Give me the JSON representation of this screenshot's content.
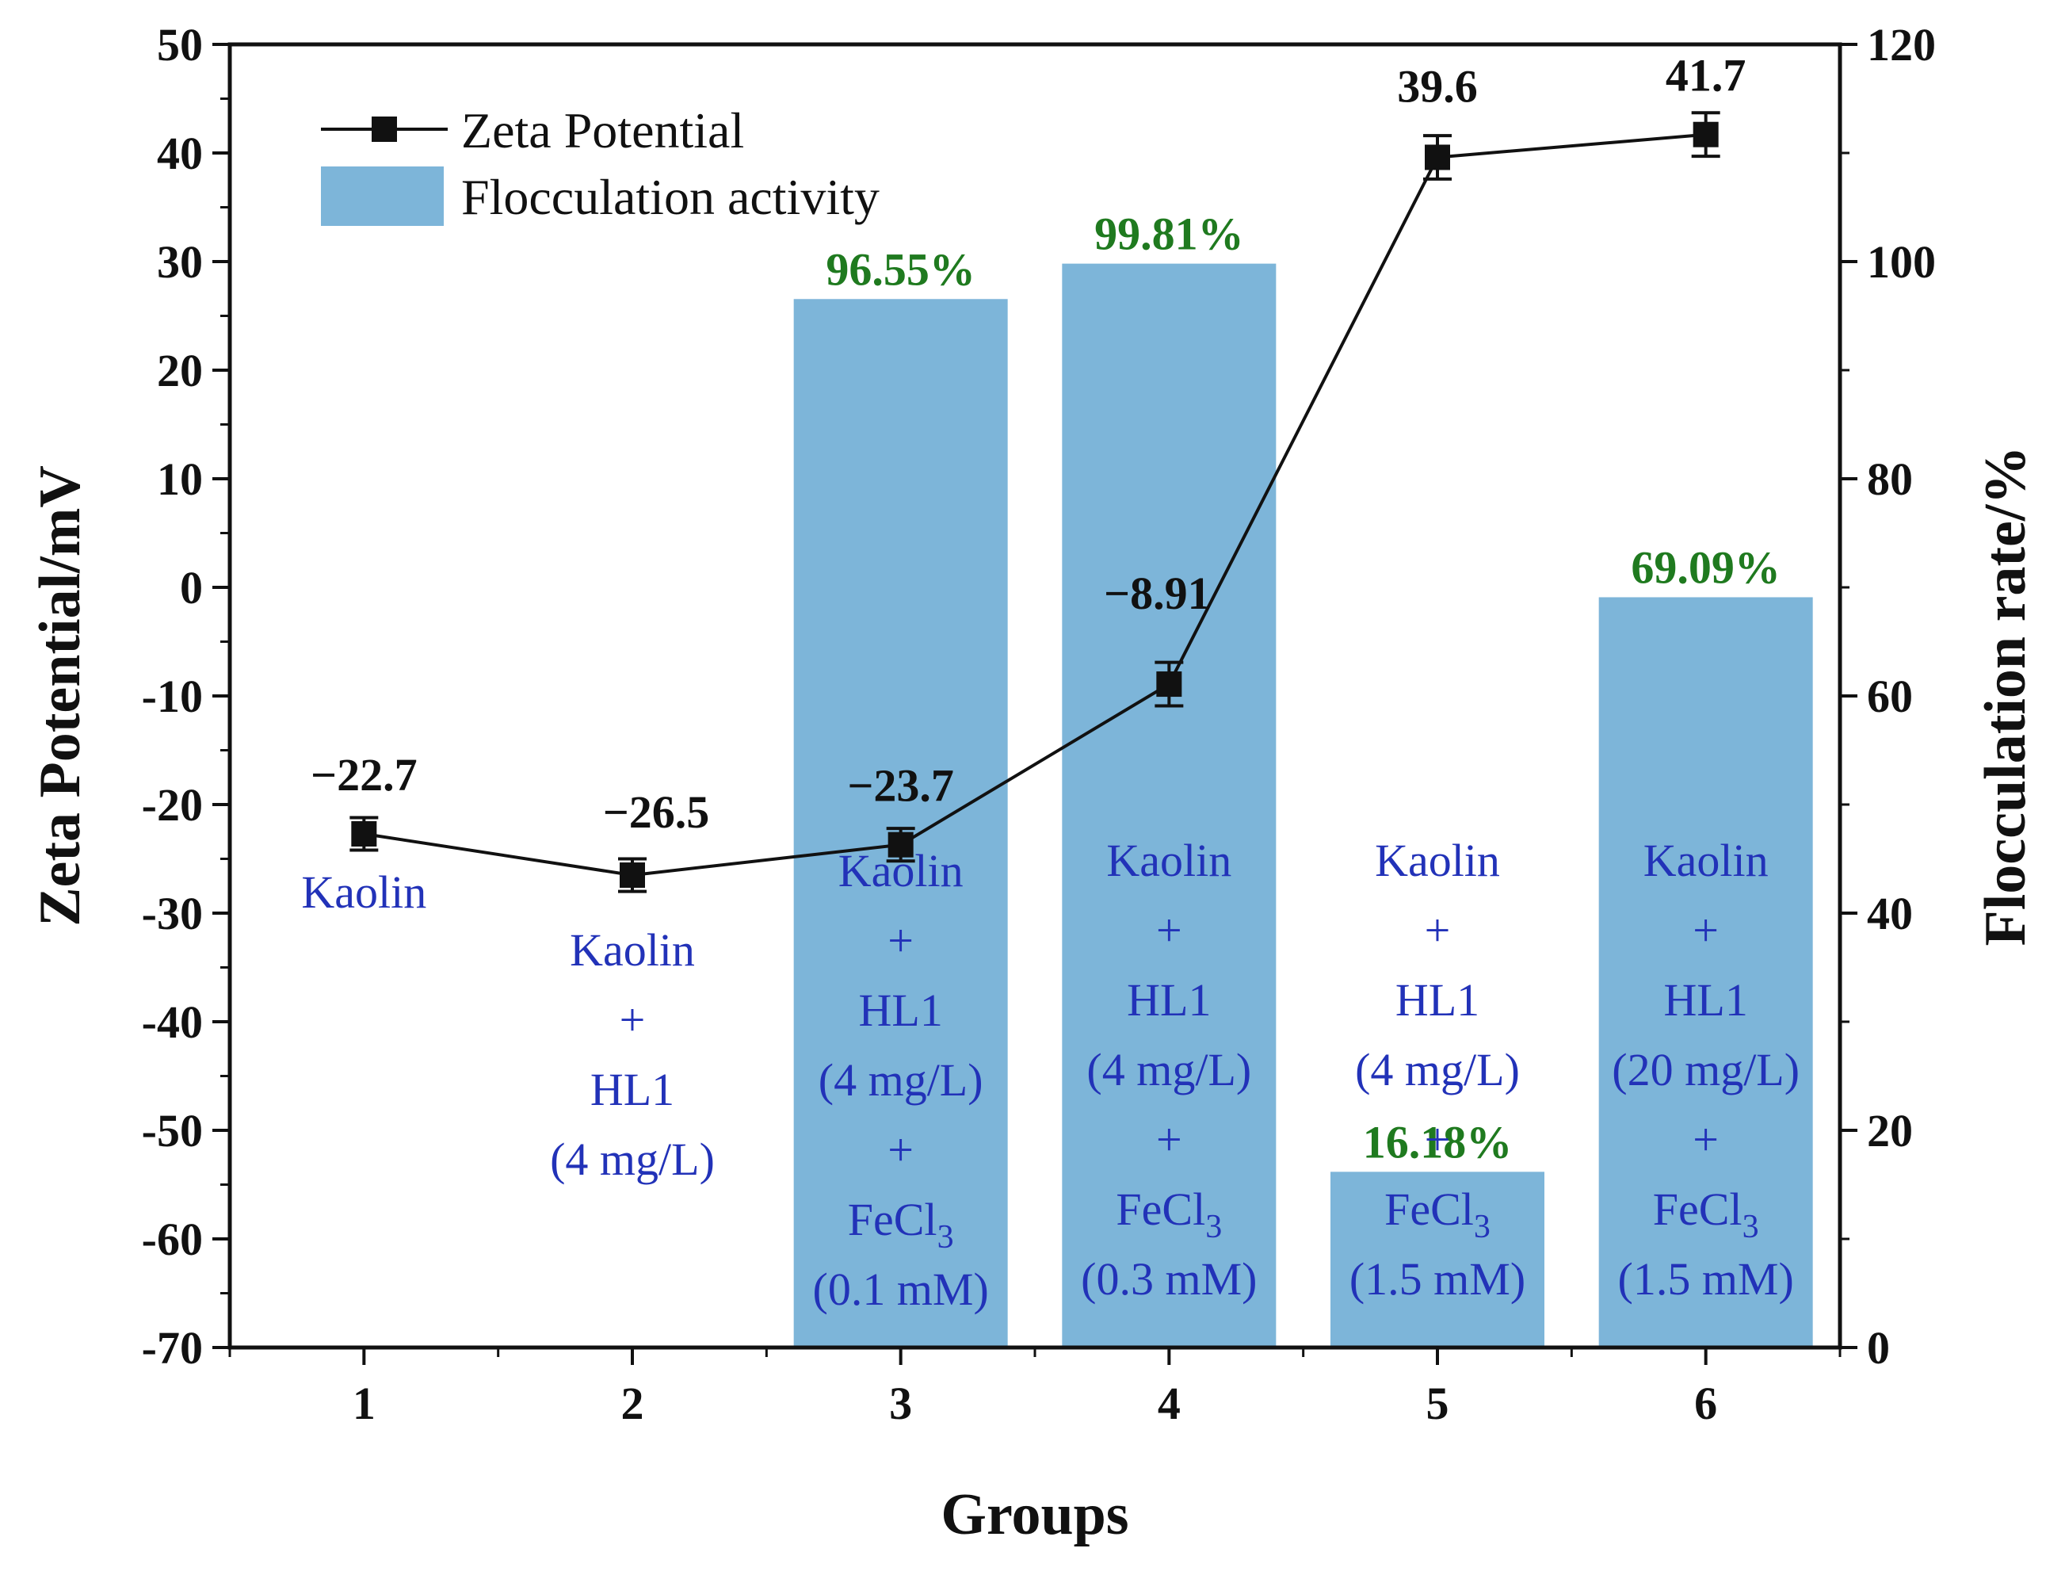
{
  "chart_data": {
    "type": "bar",
    "xlabel": "Groups",
    "ylabel_left": "Zeta Potential/mV",
    "ylabel_right": "Flocculation rate/%",
    "categories": [
      "1",
      "2",
      "3",
      "4",
      "5",
      "6"
    ],
    "ylim_left": [
      -70,
      50
    ],
    "yticks_left": [
      "50",
      "40",
      "30",
      "20",
      "10",
      "0",
      "-10",
      "-20",
      "-30",
      "-40",
      "-50",
      "-60",
      "-70"
    ],
    "ylim_right": [
      0,
      120
    ],
    "yticks_right": [
      "120",
      "100",
      "80",
      "60",
      "40",
      "20",
      "0"
    ],
    "series": [
      {
        "name": "Zeta Potential",
        "kind": "line",
        "axis": "left",
        "values": [
          -22.7,
          -26.5,
          -23.7,
          -8.91,
          39.6,
          41.7
        ],
        "errors": [
          1.5,
          1.5,
          1.5,
          2.0,
          2.0,
          2.0
        ],
        "labels": [
          "−22.7",
          "−26.5",
          "−23.7",
          "−8.91",
          "39.6",
          "41.7"
        ]
      },
      {
        "name": "Flocculation activity",
        "kind": "bar",
        "axis": "right",
        "values": [
          null,
          null,
          96.55,
          99.81,
          16.18,
          69.09
        ],
        "labels": [
          "",
          "",
          "96.55%",
          "99.81%",
          "16.18%",
          "69.09%"
        ]
      }
    ],
    "group_labels": [
      [
        "Kaolin"
      ],
      [
        "Kaolin",
        "+",
        "HL1",
        "(4 mg/L)"
      ],
      [
        "Kaolin",
        "+",
        "HL1",
        "(4 mg/L)",
        "+",
        "FeCl3",
        "(0.1 mM)"
      ],
      [
        "Kaolin",
        "+",
        "HL1",
        "(4 mg/L)",
        "+",
        "FeCl3",
        "(0.3 mM)"
      ],
      [
        "Kaolin",
        "+",
        "HL1",
        "(4 mg/L)",
        "+",
        "FeCl3",
        "(1.5 mM)"
      ],
      [
        "Kaolin",
        "+",
        "HL1",
        "(20 mg/L)",
        "+",
        "FeCl3",
        "(1.5 mM)"
      ]
    ],
    "legend": {
      "position": "top-left",
      "entries": [
        "Zeta Potential",
        "Flocculation activity"
      ]
    },
    "grid": false
  },
  "colors": {
    "bar": "#7db5d9",
    "line": "#111111",
    "percent_label": "#1f7a1f",
    "group_label": "#2232b8"
  }
}
